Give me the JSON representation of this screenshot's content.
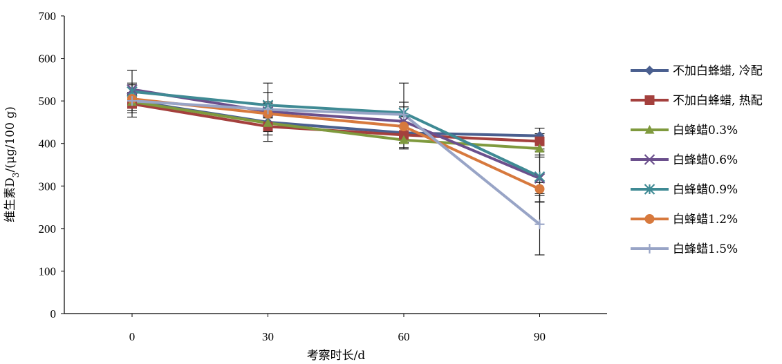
{
  "chart_data": {
    "type": "line",
    "x": [
      0,
      30,
      60,
      90
    ],
    "xlabel": "考察时长/d",
    "ylabel": "维生素D3/(μg/100 g)",
    "ylim": [
      0,
      700
    ],
    "yticks": [
      0,
      100,
      200,
      300,
      400,
      500,
      600,
      700
    ],
    "grid": false,
    "legend_position": "right",
    "series": [
      {
        "name": "不加白蜂蜡, 冷配",
        "values": [
          500,
          450,
          425,
          418
        ],
        "errors": [
          38,
          45,
          38,
          18
        ],
        "color": "#4a5f8f",
        "marker": "diamond"
      },
      {
        "name": "不加白蜂蜡, 热配",
        "values": [
          493,
          440,
          420,
          405
        ],
        "errors": [
          15,
          20,
          20,
          18
        ],
        "color": "#a4403d",
        "marker": "square"
      },
      {
        "name": "白蜂蜡0.3%",
        "values": [
          498,
          448,
          408,
          388
        ],
        "errors": [
          15,
          20,
          18,
          20
        ],
        "color": "#7f9a3e",
        "marker": "triangle"
      },
      {
        "name": "白蜂蜡0.6%",
        "values": [
          527,
          475,
          452,
          318
        ],
        "errors": [
          15,
          45,
          45,
          55
        ],
        "color": "#6b4f8c",
        "marker": "x"
      },
      {
        "name": "白蜂蜡0.9%",
        "values": [
          522,
          490,
          472,
          322
        ],
        "errors": [
          50,
          52,
          70,
          60
        ],
        "color": "#3f8a94",
        "marker": "asterisk"
      },
      {
        "name": "白蜂蜡1.2%",
        "values": [
          505,
          470,
          440,
          293
        ],
        "errors": [
          15,
          25,
          25,
          15
        ],
        "color": "#d7793d",
        "marker": "circle"
      },
      {
        "name": "白蜂蜡1.5%",
        "values": [
          500,
          480,
          468,
          210
        ],
        "errors": [
          15,
          18,
          18,
          72
        ],
        "color": "#98a4c6",
        "marker": "plus"
      }
    ]
  }
}
